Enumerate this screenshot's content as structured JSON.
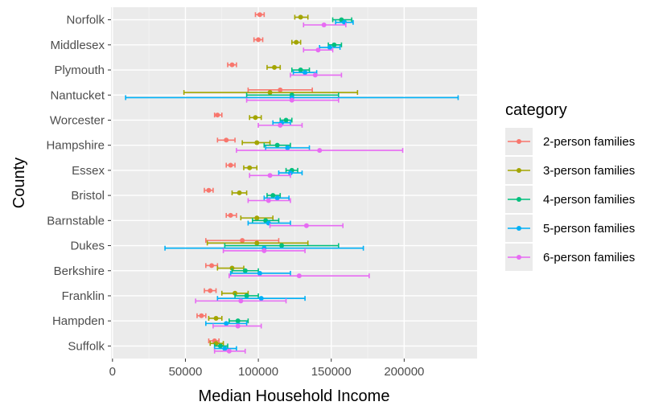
{
  "chart_data": {
    "type": "scatter",
    "xlabel": "Median Household Income",
    "ylabel": "County",
    "xlim": [
      -1000,
      250000
    ],
    "x_ticks": [
      0,
      50000,
      100000,
      150000,
      200000
    ],
    "x_tick_labels": [
      "0",
      "50000",
      "100000",
      "150000",
      "200000"
    ],
    "grid": true,
    "legend_title": "category",
    "legend_position": "right",
    "counties": [
      "Norfolk",
      "Middlesex",
      "Plymouth",
      "Nantucket",
      "Worcester",
      "Hampshire",
      "Essex",
      "Bristol",
      "Barnstable",
      "Dukes",
      "Berkshire",
      "Franklin",
      "Hampden",
      "Suffolk"
    ],
    "series": [
      {
        "name": "2-person families",
        "color": "#F8766D",
        "points": [
          {
            "county": "Norfolk",
            "value": 101000,
            "low": 98000,
            "high": 104000
          },
          {
            "county": "Middlesex",
            "value": 100000,
            "low": 97000,
            "high": 103000
          },
          {
            "county": "Plymouth",
            "value": 82000,
            "low": 79000,
            "high": 85000
          },
          {
            "county": "Nantucket",
            "value": 115000,
            "low": 93000,
            "high": 137000
          },
          {
            "county": "Worcester",
            "value": 72000,
            "low": 70000,
            "high": 75000
          },
          {
            "county": "Hampshire",
            "value": 78000,
            "low": 72000,
            "high": 84000
          },
          {
            "county": "Essex",
            "value": 81000,
            "low": 78000,
            "high": 84000
          },
          {
            "county": "Bristol",
            "value": 66000,
            "low": 63000,
            "high": 69000
          },
          {
            "county": "Barnstable",
            "value": 81000,
            "low": 78000,
            "high": 85000
          },
          {
            "county": "Dukes",
            "value": 89000,
            "low": 64000,
            "high": 114000
          },
          {
            "county": "Berkshire",
            "value": 68000,
            "low": 64000,
            "high": 72000
          },
          {
            "county": "Franklin",
            "value": 67000,
            "low": 63000,
            "high": 71000
          },
          {
            "county": "Hampden",
            "value": 61000,
            "low": 58000,
            "high": 64000
          },
          {
            "county": "Suffolk",
            "value": 70000,
            "low": 66000,
            "high": 73000
          }
        ]
      },
      {
        "name": "3-person families",
        "color": "#A3A500",
        "points": [
          {
            "county": "Norfolk",
            "value": 129000,
            "low": 125000,
            "high": 134000
          },
          {
            "county": "Middlesex",
            "value": 126000,
            "low": 123000,
            "high": 129000
          },
          {
            "county": "Plymouth",
            "value": 111000,
            "low": 106000,
            "high": 115000
          },
          {
            "county": "Nantucket",
            "value": 108000,
            "low": 49000,
            "high": 168000
          },
          {
            "county": "Worcester",
            "value": 98000,
            "low": 94000,
            "high": 102000
          },
          {
            "county": "Hampshire",
            "value": 99000,
            "low": 89000,
            "high": 108000
          },
          {
            "county": "Essex",
            "value": 94000,
            "low": 90000,
            "high": 99000
          },
          {
            "county": "Bristol",
            "value": 87000,
            "low": 82000,
            "high": 92000
          },
          {
            "county": "Barnstable",
            "value": 99000,
            "low": 88000,
            "high": 110000
          },
          {
            "county": "Dukes",
            "value": 99000,
            "low": 65000,
            "high": 134000
          },
          {
            "county": "Berkshire",
            "value": 82000,
            "low": 72000,
            "high": 90000
          },
          {
            "county": "Franklin",
            "value": 84000,
            "low": 75000,
            "high": 93000
          },
          {
            "county": "Hampden",
            "value": 71000,
            "low": 66000,
            "high": 75000
          },
          {
            "county": "Suffolk",
            "value": 71000,
            "low": 67000,
            "high": 76000
          }
        ]
      },
      {
        "name": "4-person families",
        "color": "#00BF7D",
        "points": [
          {
            "county": "Norfolk",
            "value": 157000,
            "low": 151000,
            "high": 164000
          },
          {
            "county": "Middlesex",
            "value": 152000,
            "low": 148000,
            "high": 157000
          },
          {
            "county": "Plymouth",
            "value": 129000,
            "low": 123000,
            "high": 135000
          },
          {
            "county": "Nantucket",
            "value": 123000,
            "low": 92000,
            "high": 155000
          },
          {
            "county": "Worcester",
            "value": 119000,
            "low": 115000,
            "high": 123000
          },
          {
            "county": "Hampshire",
            "value": 113000,
            "low": 104000,
            "high": 122000
          },
          {
            "county": "Essex",
            "value": 123000,
            "low": 119000,
            "high": 127000
          },
          {
            "county": "Bristol",
            "value": 110000,
            "low": 106000,
            "high": 115000
          },
          {
            "county": "Barnstable",
            "value": 105000,
            "low": 96000,
            "high": 114000
          },
          {
            "county": "Dukes",
            "value": 116000,
            "low": 77000,
            "high": 155000
          },
          {
            "county": "Berkshire",
            "value": 91000,
            "low": 82000,
            "high": 100000
          },
          {
            "county": "Franklin",
            "value": 92000,
            "low": 84000,
            "high": 100000
          },
          {
            "county": "Hampden",
            "value": 86000,
            "low": 80000,
            "high": 93000
          },
          {
            "county": "Suffolk",
            "value": 74000,
            "low": 70000,
            "high": 79000
          }
        ]
      },
      {
        "name": "5-person families",
        "color": "#00B0F6",
        "points": [
          {
            "county": "Norfolk",
            "value": 159000,
            "low": 153000,
            "high": 165000
          },
          {
            "county": "Middlesex",
            "value": 149000,
            "low": 142000,
            "high": 156000
          },
          {
            "county": "Plymouth",
            "value": 132000,
            "low": 124000,
            "high": 140000
          },
          {
            "county": "Nantucket",
            "value": 123000,
            "low": 9000,
            "high": 237000
          },
          {
            "county": "Worcester",
            "value": 116000,
            "low": 110000,
            "high": 122000
          },
          {
            "county": "Hampshire",
            "value": 120000,
            "low": 105000,
            "high": 135000
          },
          {
            "county": "Essex",
            "value": 122000,
            "low": 114000,
            "high": 130000
          },
          {
            "county": "Bristol",
            "value": 113000,
            "low": 104000,
            "high": 121000
          },
          {
            "county": "Barnstable",
            "value": 107000,
            "low": 93000,
            "high": 122000
          },
          {
            "county": "Dukes",
            "value": 104000,
            "low": 36000,
            "high": 172000
          },
          {
            "county": "Berkshire",
            "value": 101000,
            "low": 81000,
            "high": 122000
          },
          {
            "county": "Franklin",
            "value": 102000,
            "low": 72000,
            "high": 132000
          },
          {
            "county": "Hampden",
            "value": 78000,
            "low": 64000,
            "high": 92000
          },
          {
            "county": "Suffolk",
            "value": 77000,
            "low": 70000,
            "high": 85000
          }
        ]
      },
      {
        "name": "6-person families",
        "color": "#E76BF3",
        "points": [
          {
            "county": "Norfolk",
            "value": 145000,
            "low": 131000,
            "high": 160000
          },
          {
            "county": "Middlesex",
            "value": 141000,
            "low": 131000,
            "high": 151000
          },
          {
            "county": "Plymouth",
            "value": 139000,
            "low": 122000,
            "high": 157000
          },
          {
            "county": "Nantucket",
            "value": 123000,
            "low": 92000,
            "high": 155000
          },
          {
            "county": "Worcester",
            "value": 115000,
            "low": 100000,
            "high": 130000
          },
          {
            "county": "Hampshire",
            "value": 142000,
            "low": 85000,
            "high": 199000
          },
          {
            "county": "Essex",
            "value": 108000,
            "low": 94000,
            "high": 122000
          },
          {
            "county": "Bristol",
            "value": 107000,
            "low": 93000,
            "high": 122000
          },
          {
            "county": "Barnstable",
            "value": 133000,
            "low": 108000,
            "high": 158000
          },
          {
            "county": "Dukes",
            "value": 104000,
            "low": 76000,
            "high": 132000
          },
          {
            "county": "Berkshire",
            "value": 128000,
            "low": 80000,
            "high": 176000
          },
          {
            "county": "Franklin",
            "value": 88000,
            "low": 57000,
            "high": 119000
          },
          {
            "county": "Hampden",
            "value": 86000,
            "low": 69000,
            "high": 102000
          },
          {
            "county": "Suffolk",
            "value": 80000,
            "low": 70000,
            "high": 91000
          }
        ]
      }
    ]
  }
}
